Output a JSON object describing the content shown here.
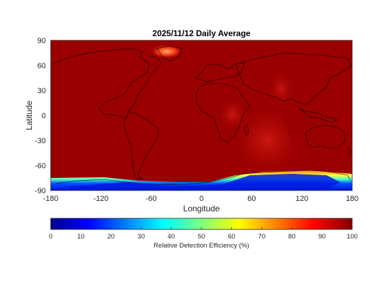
{
  "title": "2025/11/12 Daily Average",
  "xlabel": "Longitude",
  "ylabel": "Latitude",
  "colorbar_label": "Relative Detection Efficiency (%)",
  "colormap": "jet",
  "chart_data": {
    "type": "heatmap",
    "title": "2025/11/12 Daily Average",
    "xlabel": "Longitude",
    "ylabel": "Latitude",
    "xlim": [
      -180,
      180
    ],
    "ylim": [
      -90,
      90
    ],
    "x_ticks": [
      "-180",
      "-120",
      "-60",
      "0",
      "60",
      "120",
      "180"
    ],
    "y_ticks": [
      "90",
      "60",
      "30",
      "0",
      "-30",
      "-60",
      "-90"
    ],
    "x_tick_values": [
      -180,
      -120,
      -60,
      0,
      60,
      120,
      180
    ],
    "y_tick_values": [
      90,
      60,
      30,
      0,
      -30,
      -60,
      -90
    ],
    "color_range": [
      0,
      100
    ],
    "colorbar_ticks": [
      "0",
      "10",
      "20",
      "30",
      "40",
      "50",
      "60",
      "70",
      "80",
      "90",
      "100"
    ],
    "colorbar_tick_values": [
      0,
      10,
      20,
      30,
      40,
      50,
      60,
      70,
      80,
      90,
      100
    ],
    "background_value": 98,
    "features": [
      {
        "region": "Greenland",
        "lon": -38,
        "lat": 76,
        "value": 72
      },
      {
        "region": "Eastern Africa",
        "lon": 35,
        "lat": 2,
        "value": 90
      },
      {
        "region": "Southern Indian Ocean",
        "lon": 75,
        "lat": -45,
        "value": 85
      },
      {
        "region": "Middle East / Central Asia",
        "lon": 65,
        "lat": 42,
        "value": 92
      },
      {
        "region": "Antarctic coast",
        "lat": -72,
        "value": 60
      },
      {
        "region": "Antarctica interior",
        "lat": -84,
        "value": 12
      }
    ]
  }
}
